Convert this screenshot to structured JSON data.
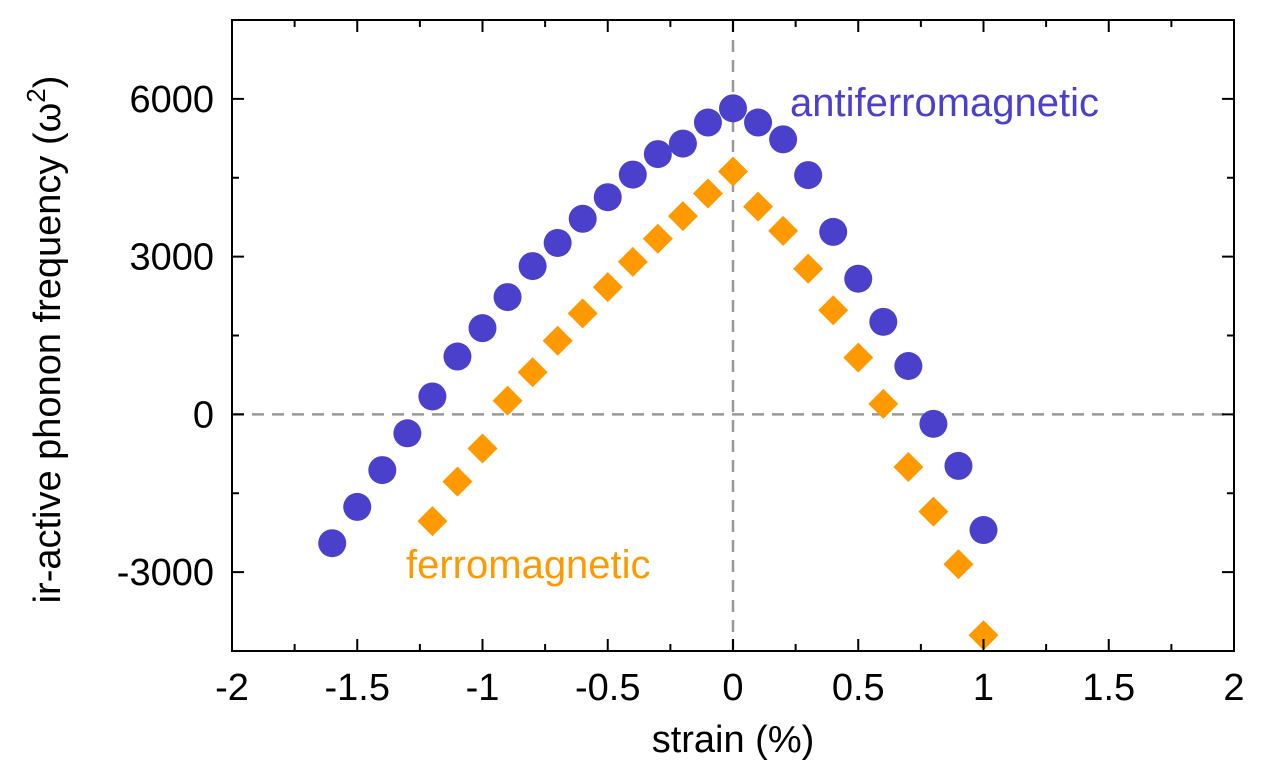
{
  "chart_data": {
    "type": "scatter",
    "xlabel": "strain (%)",
    "ylabel": "ir-active phonon frequency (ω²)",
    "ylabel_parts": {
      "main": "ir-active phonon frequency (ω",
      "sup": "2",
      "close": ")"
    },
    "xlim": [
      -2,
      2
    ],
    "ylim": [
      -4500,
      7500
    ],
    "x_ticks": [
      -2,
      -1.5,
      -1,
      -0.5,
      0,
      0.5,
      1,
      1.5,
      2
    ],
    "x_tick_labels": [
      "-2",
      "-1.5",
      "-1",
      "-0.5",
      "0",
      "0.5",
      "1",
      "1.5",
      "2"
    ],
    "y_ticks": [
      -3000,
      0,
      3000,
      6000
    ],
    "y_tick_labels": [
      "-3000",
      "0",
      "3000",
      "6000"
    ],
    "reference_lines": {
      "x": 0,
      "y": 0,
      "style": "dashed",
      "color": "#999999"
    },
    "series": [
      {
        "name": "antiferromagnetic",
        "marker": "circle",
        "color": "#4b40cc",
        "x": [
          -1.6,
          -1.5,
          -1.4,
          -1.3,
          -1.2,
          -1.1,
          -1.0,
          -0.9,
          -0.8,
          -0.7,
          -0.6,
          -0.5,
          -0.4,
          -0.3,
          -0.2,
          -0.1,
          0.0,
          0.1,
          0.2,
          0.3,
          0.4,
          0.5,
          0.6,
          0.7,
          0.8,
          0.9,
          1.0
        ],
        "y": [
          -2450,
          -1760,
          -1060,
          -360,
          340,
          1100,
          1640,
          2230,
          2820,
          3260,
          3720,
          4130,
          4560,
          4950,
          5150,
          5550,
          5820,
          5550,
          5230,
          4550,
          3470,
          2580,
          1760,
          920,
          -180,
          -980,
          -2200
        ]
      },
      {
        "name": "ferromagnetic",
        "marker": "diamond",
        "color": "#ff9900",
        "x": [
          -1.2,
          -1.1,
          -1.0,
          -0.9,
          -0.8,
          -0.7,
          -0.6,
          -0.5,
          -0.4,
          -0.3,
          -0.2,
          -0.1,
          0.0,
          0.1,
          0.2,
          0.3,
          0.4,
          0.5,
          0.6,
          0.7,
          0.8,
          0.9,
          1.0
        ],
        "y": [
          -2030,
          -1280,
          -650,
          260,
          800,
          1400,
          1920,
          2420,
          2900,
          3340,
          3770,
          4200,
          4620,
          3950,
          3490,
          2770,
          1980,
          1080,
          200,
          -1000,
          -1850,
          -2850,
          -4200
        ]
      }
    ],
    "annotations": [
      {
        "text": "antiferromagnetic",
        "series": "antiferromagnetic"
      },
      {
        "text": "ferromagnetic",
        "series": "ferromagnetic"
      }
    ]
  }
}
